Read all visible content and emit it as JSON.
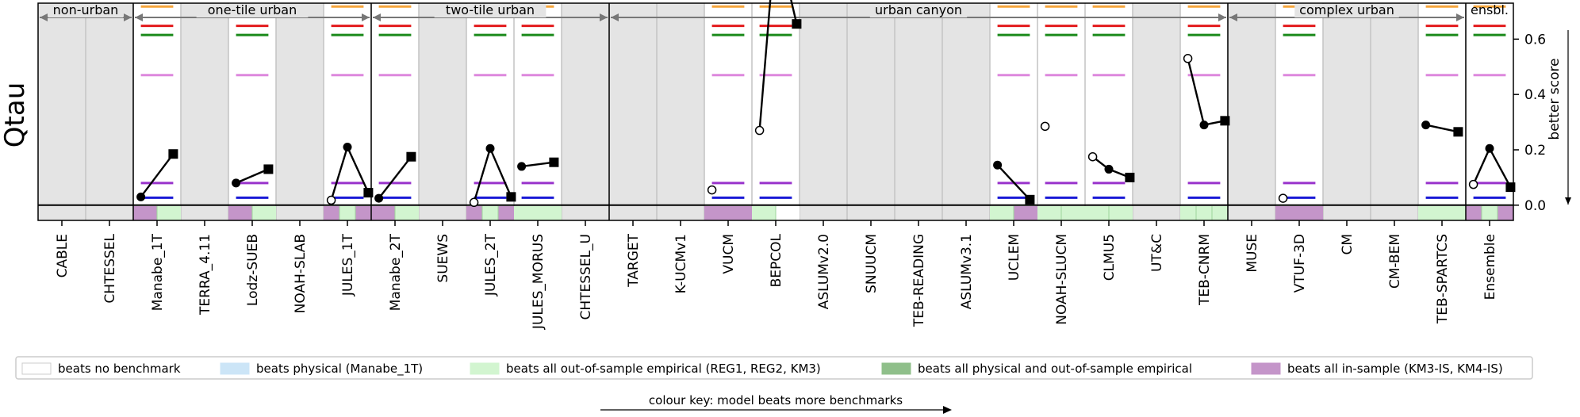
{
  "chart_data": {
    "type": "scatter",
    "ylabel": "Qtau",
    "right_label": "better score",
    "ylim": [
      -0.055,
      0.73
    ],
    "yticks": [
      "0.0",
      "0.2",
      "0.4",
      "0.6"
    ],
    "ytick_values": [
      0.0,
      0.2,
      0.4,
      0.6
    ],
    "models": [
      "CABLE",
      "CHTESSEL",
      "Manabe_1T",
      "TERRA_4.11",
      "Lodz-SUEB",
      "NOAH-SLAB",
      "JULES_1T",
      "Manabe_2T",
      "SUEWS",
      "JULES_2T",
      "JULES_MORUS",
      "CHTESSEL_U",
      "TARGET",
      "K-UCMv1",
      "VUCM",
      "BEPCOL",
      "ASLUMv2.0",
      "SNUUCM",
      "TEB-READING",
      "ASLUMv3.1",
      "UCLEM",
      "NOAH-SLUCM",
      "CLMU5",
      "UT&C",
      "TEB-CNRM",
      "MUSE",
      "VTUF-3D",
      "CM",
      "CM-BEM",
      "TEB-SPARTCS",
      "Ensemble"
    ],
    "groups": [
      {
        "label": "non-urban",
        "start": 0,
        "end": 1
      },
      {
        "label": "one-tile urban",
        "start": 2,
        "end": 6
      },
      {
        "label": "two-tile urban",
        "start": 7,
        "end": 11
      },
      {
        "label": "urban canyon",
        "start": 12,
        "end": 24
      },
      {
        "label": "complex urban",
        "start": 25,
        "end": 29
      },
      {
        "label": "ensbl.",
        "start": 30,
        "end": 30
      }
    ],
    "white_columns": [
      2,
      4,
      6,
      7,
      9,
      10,
      14,
      15,
      20,
      21,
      22,
      24,
      26,
      29,
      30
    ],
    "benchmark_lines": [
      {
        "color": "#f5a53b",
        "value": 0.718
      },
      {
        "color": "#e31a1c",
        "value": 0.648
      },
      {
        "color": "#1a8a1a",
        "value": 0.615
      },
      {
        "color": "#dd88dd",
        "value": 0.47
      },
      {
        "color": "#9933cc",
        "value": 0.08
      },
      {
        "color": "#1a1ad6",
        "value": 0.027
      }
    ],
    "points": [
      {
        "model": "Manabe_1T",
        "first": 0.03,
        "second": 0.185,
        "first_marker": "filled",
        "second_offset": -0.05
      },
      {
        "model": "Lodz-SUEB",
        "first": 0.08,
        "second": 0.13,
        "first_marker": "filled",
        "second_offset": -0.05
      },
      {
        "model": "JULES_1T",
        "first": 0.018,
        "second": 0.21,
        "third": 0.045,
        "first_marker": "open"
      },
      {
        "model": "Manabe_2T",
        "first": 0.025,
        "second": 0.175,
        "first_marker": "filled",
        "second_offset": -0.05
      },
      {
        "model": "JULES_2T",
        "first": 0.01,
        "second": 0.205,
        "third": 0.03,
        "first_marker": "open"
      },
      {
        "model": "JULES_MORUS",
        "first": 0.14,
        "second": 0.155,
        "first_marker": "filled"
      },
      {
        "model": "VUCM",
        "first": 0.055,
        "first_marker": "open"
      },
      {
        "model": "BEPCOL",
        "first": 0.27,
        "second": 0.98,
        "third": 0.655,
        "first_marker": "open"
      },
      {
        "model": "UCLEM",
        "first": 0.145,
        "second": 0.02,
        "first_marker": "filled",
        "second_offset": 0.1
      },
      {
        "model": "NOAH-SLUCM",
        "first": 0.285,
        "first_marker": "open"
      },
      {
        "model": "CLMU5",
        "first": 0.175,
        "second": 0.13,
        "third": 0.1,
        "first_marker": "open"
      },
      {
        "model": "TEB-CNRM",
        "first": 0.53,
        "second": 0.29,
        "third": 0.305,
        "first_marker": "open"
      },
      {
        "model": "VTUF-3D",
        "first": 0.025,
        "first_marker": "open"
      },
      {
        "model": "TEB-SPARTCS",
        "first": 0.29,
        "second": 0.265,
        "first_marker": "filled",
        "second_offset": 0.1
      },
      {
        "model": "Ensemble",
        "first": 0.075,
        "second": 0.205,
        "third": 0.065,
        "first_marker": "open"
      }
    ],
    "colour_strip": {
      "colors": {
        "purple": "#c495c9",
        "green": "#d2f5d0"
      },
      "cells": [
        {
          "column": 2,
          "segments": [
            "purple",
            "green"
          ]
        },
        {
          "column": 4,
          "segments": [
            "purple",
            "green"
          ]
        },
        {
          "column": 6,
          "segments": [
            "purple",
            "green",
            "purple"
          ]
        },
        {
          "column": 7,
          "segments": [
            "purple",
            "green"
          ]
        },
        {
          "column": 9,
          "segments": [
            "purple",
            "green",
            "purple"
          ]
        },
        {
          "column": 10,
          "segments": [
            "green"
          ]
        },
        {
          "column": 14,
          "segments": [
            "purple"
          ]
        },
        {
          "column": 15,
          "segments": [
            "green",
            "white"
          ]
        },
        {
          "column": 20,
          "segments": [
            "green",
            "purple"
          ]
        },
        {
          "column": 21,
          "segments": [
            "green",
            "green"
          ]
        },
        {
          "column": 22,
          "segments": [
            "green",
            "green"
          ]
        },
        {
          "column": 24,
          "segments": [
            "green",
            "green",
            "green"
          ]
        },
        {
          "column": 26,
          "segments": [
            "purple"
          ]
        },
        {
          "column": 29,
          "segments": [
            "green"
          ]
        },
        {
          "column": 30,
          "segments": [
            "purple",
            "green",
            "purple"
          ]
        }
      ]
    },
    "legend": [
      {
        "label": "beats no benchmark",
        "color": "#ffffff",
        "border": "#cccccc"
      },
      {
        "label": "beats physical (Manabe_1T)",
        "color": "#cce5f7",
        "border": "#cce5f7"
      },
      {
        "label": "beats all out-of-sample empirical (REG1, REG2, KM3)",
        "color": "#d2f5d0",
        "border": "#d2f5d0"
      },
      {
        "label": "beats all physical and out-of-sample empirical",
        "color": "#8fbf8a",
        "border": "#8fbf8a"
      },
      {
        "label": "beats all in-sample (KM3-IS, KM4-IS)",
        "color": "#c495c9",
        "border": "#c495c9"
      }
    ],
    "colour_key_label": "colour key: model beats more benchmarks",
    "grid": false,
    "legend_placement": "bottom"
  }
}
